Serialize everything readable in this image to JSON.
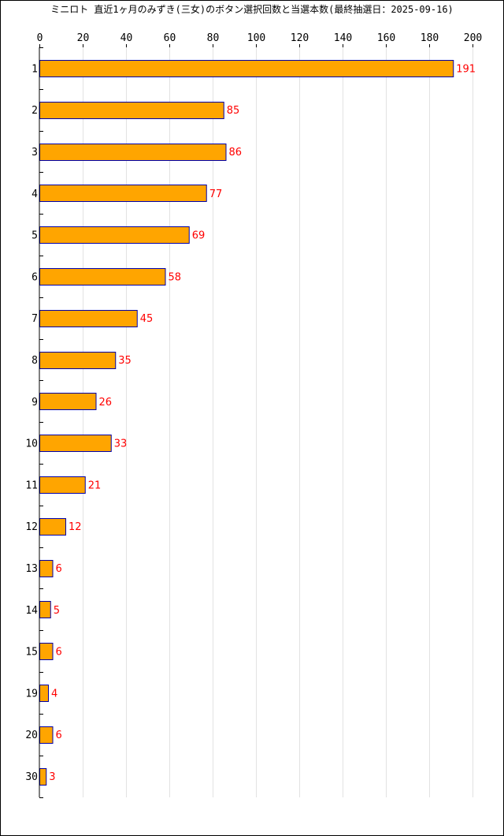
{
  "chart_data": {
    "type": "bar",
    "orientation": "horizontal",
    "title": "ミニロト 直近1ヶ月のみずき(三女)のボタン選択回数と当選本数(最終抽選日：2025-09-16)",
    "categories": [
      "1",
      "2",
      "3",
      "4",
      "5",
      "6",
      "7",
      "8",
      "9",
      "10",
      "11",
      "12",
      "13",
      "14",
      "15",
      "19",
      "20",
      "30"
    ],
    "values": [
      191,
      85,
      86,
      77,
      69,
      58,
      45,
      35,
      26,
      33,
      21,
      12,
      6,
      5,
      6,
      4,
      6,
      3
    ],
    "xlim": [
      0,
      200
    ],
    "xticks": [
      0,
      20,
      40,
      60,
      80,
      100,
      120,
      140,
      160,
      180,
      200
    ],
    "xlabel": "",
    "ylabel": "",
    "grid": true,
    "legend": "none",
    "bar_color": "#FFA500",
    "bar_edge_color": "#0000AA",
    "label_color": "#FF0000"
  }
}
